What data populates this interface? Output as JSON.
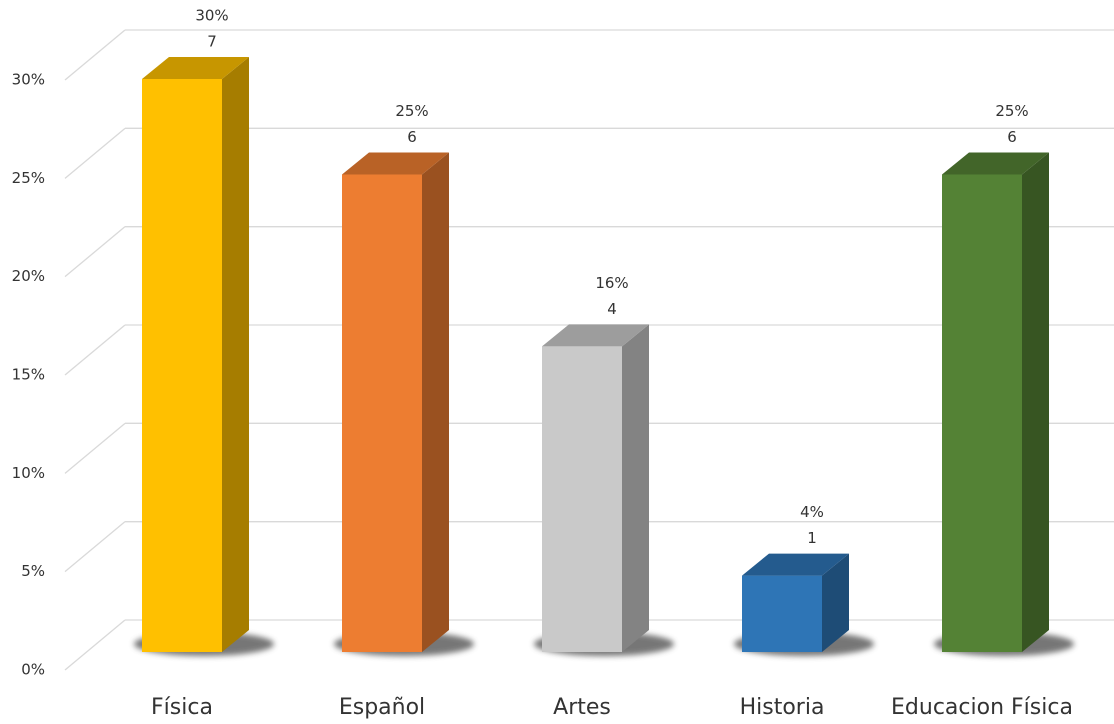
{
  "chart_data": {
    "type": "bar3d",
    "categories": [
      "Física",
      "Español",
      "Artes",
      "Historia",
      "Educacion Física"
    ],
    "values": [
      30,
      25,
      16,
      4,
      25
    ],
    "value_labels": [
      "30%",
      "25%",
      "16%",
      "4%",
      "25%"
    ],
    "counts": [
      7,
      6,
      4,
      1,
      6
    ],
    "colors": [
      "#ffc000",
      "#ed7d31",
      "#c9c9c9",
      "#2e75b6",
      "#548235"
    ],
    "ylim": [
      0,
      30
    ],
    "yticks": [
      {
        "value": 0,
        "label": "0%"
      },
      {
        "value": 5,
        "label": "5%"
      },
      {
        "value": 10,
        "label": "10%"
      },
      {
        "value": 15,
        "label": "15%"
      },
      {
        "value": 20,
        "label": "20%"
      },
      {
        "value": 25,
        "label": "25%"
      },
      {
        "value": 30,
        "label": "30%"
      }
    ],
    "grid": true
  }
}
